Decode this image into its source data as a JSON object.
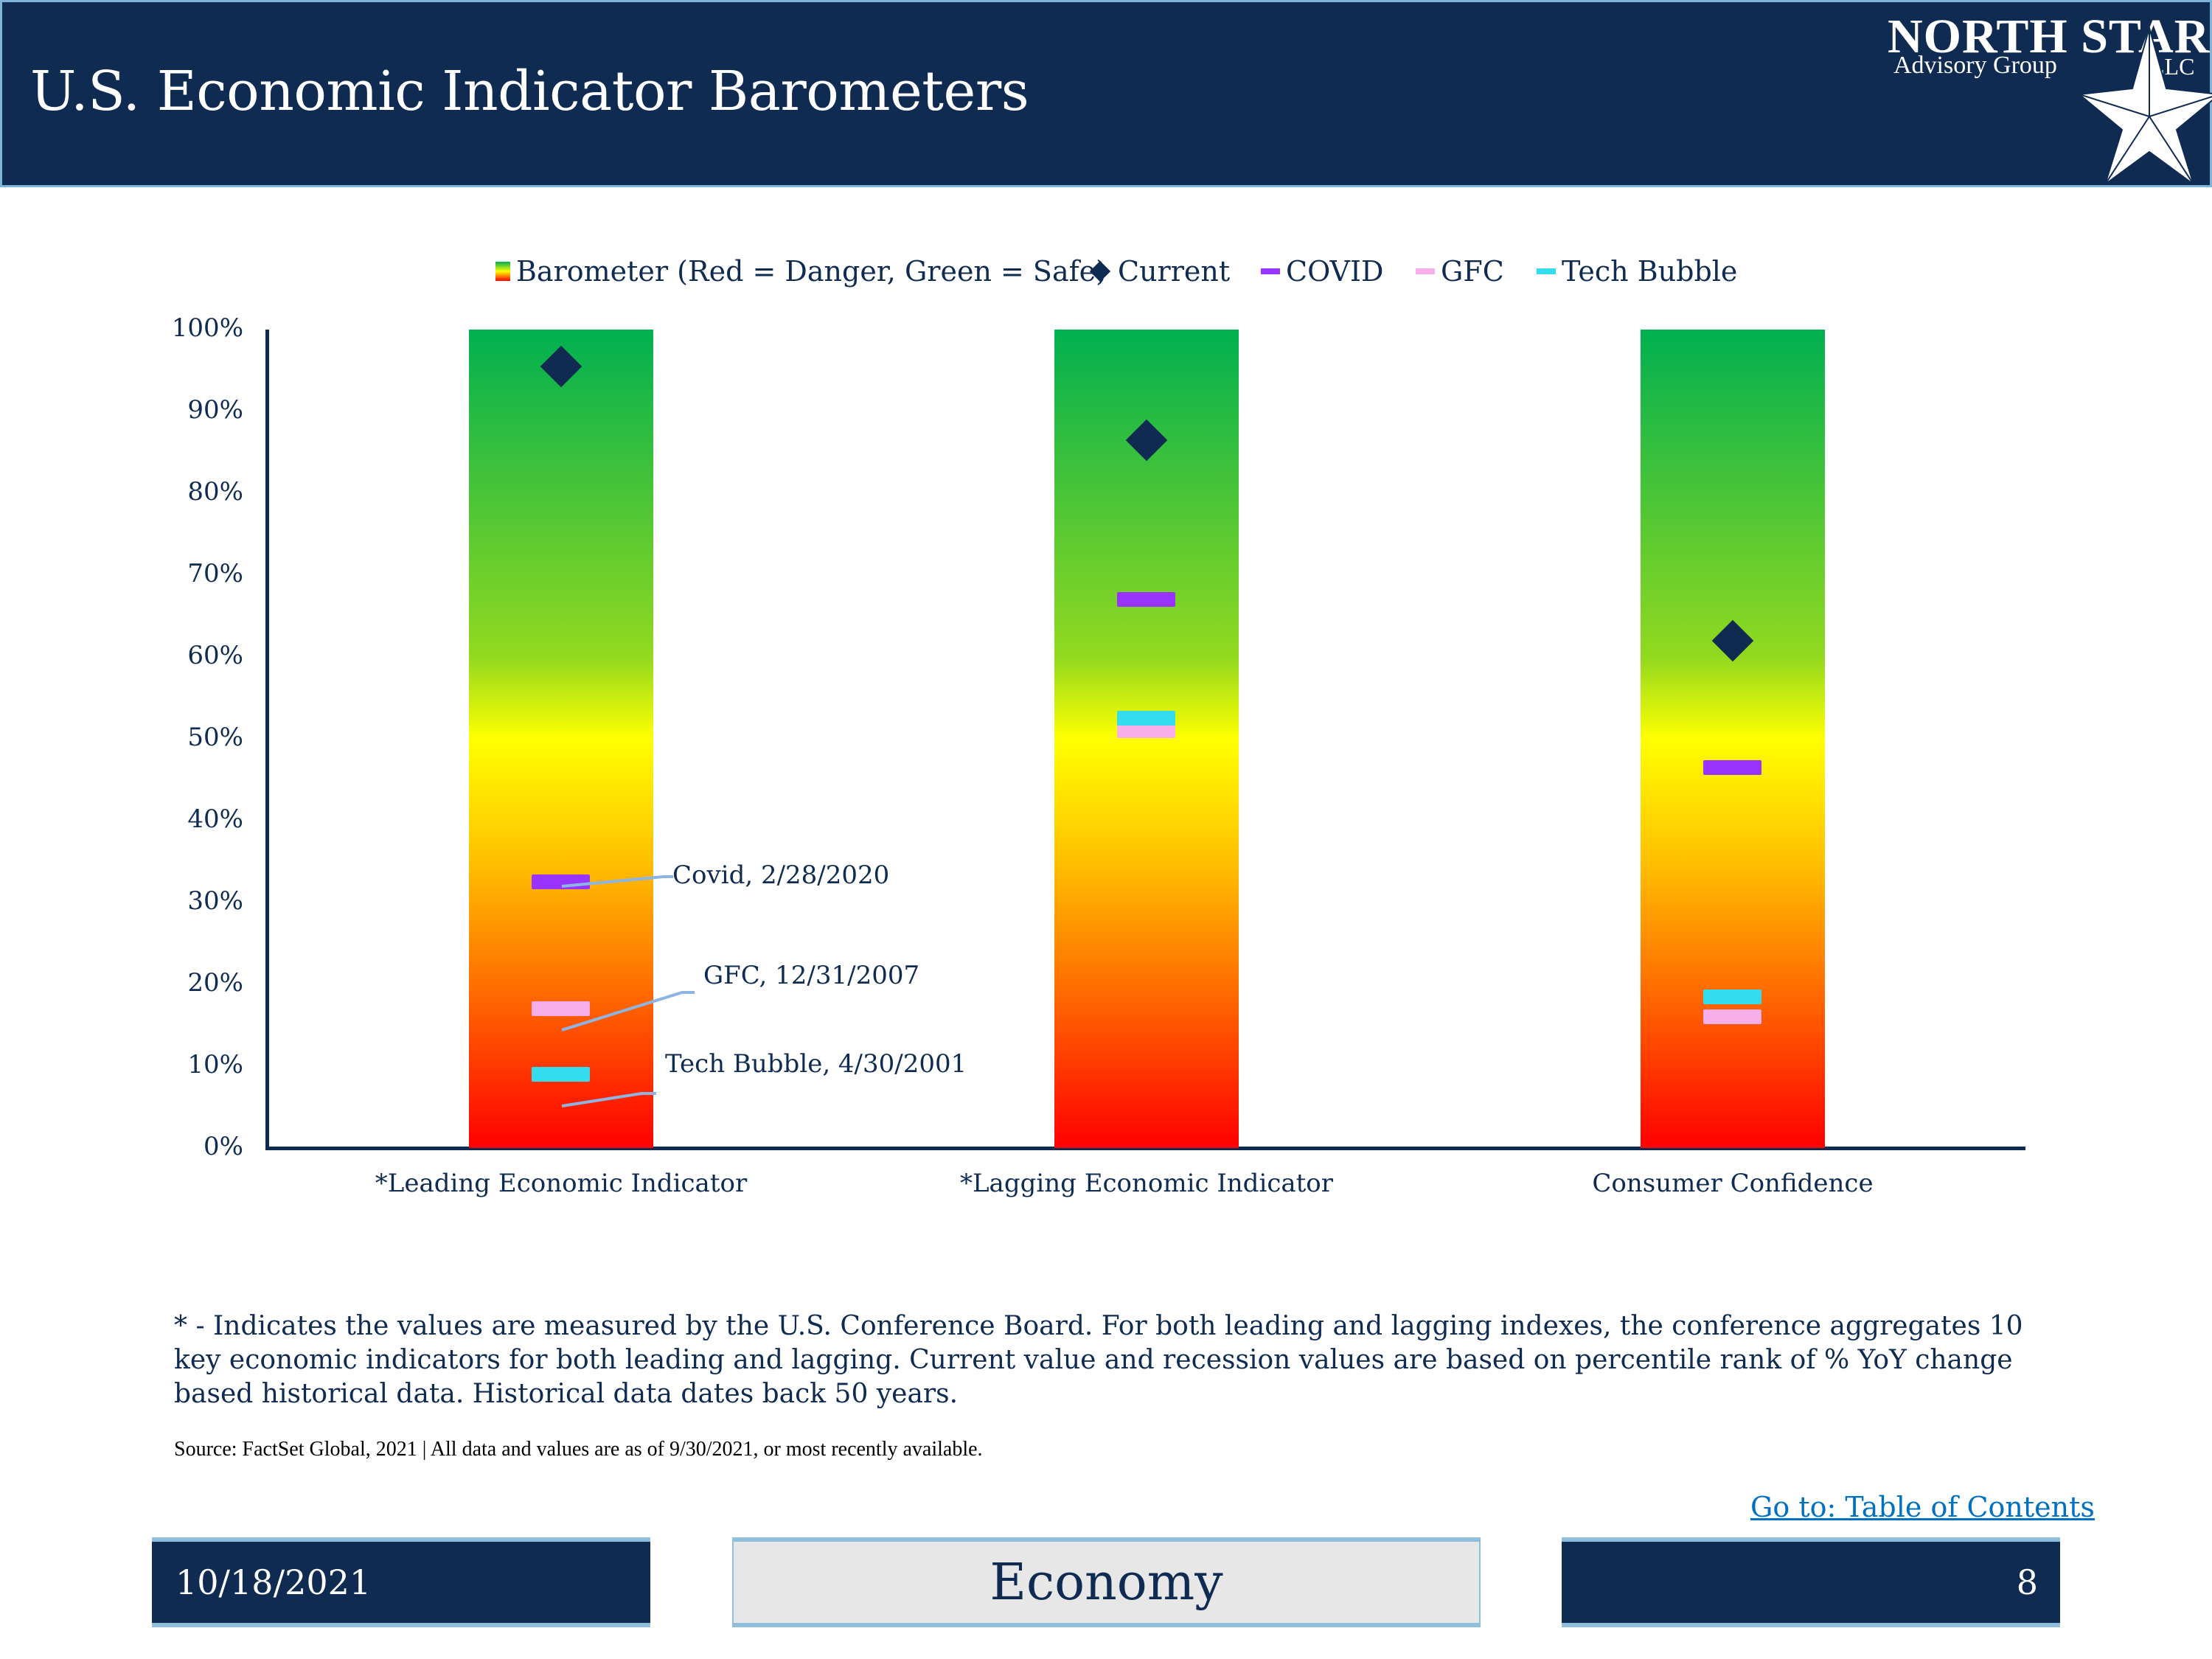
{
  "header": {
    "title": "U.S. Economic Indicator Barometers",
    "logo": {
      "name": "NORTH STAR",
      "sub": "Advisory Group",
      "llc": "LLC"
    }
  },
  "colors": {
    "navy": "#0f2b52",
    "current": "#0f2b52",
    "covid": "#9933ff",
    "gfc": "#f8aee8",
    "tech_bubble": "#33ddee",
    "leader_line": "#8db4e2",
    "link": "#0070c0"
  },
  "legend": [
    {
      "key": "barometer",
      "label": "Barometer (Red = Danger, Green = Safe)",
      "icon": "gradient-bar-icon"
    },
    {
      "key": "current",
      "label": "Current",
      "icon": "diamond-icon"
    },
    {
      "key": "covid",
      "label": "COVID",
      "icon": "line-icon"
    },
    {
      "key": "gfc",
      "label": "GFC",
      "icon": "line-icon"
    },
    {
      "key": "tech",
      "label": "Tech Bubble",
      "icon": "line-icon"
    }
  ],
  "yaxis": {
    "ticks": [
      "100%",
      "90%",
      "80%",
      "70%",
      "60%",
      "50%",
      "40%",
      "30%",
      "20%",
      "10%",
      "0%"
    ]
  },
  "annotations": {
    "covid": "Covid, 2/28/2020",
    "gfc": "GFC, 12/31/2007",
    "tech": "Tech Bubble, 4/30/2001"
  },
  "chart_data": {
    "type": "bar",
    "title": "U.S. Economic Indicator Barometers",
    "xlabel": "",
    "ylabel": "",
    "ylim": [
      0,
      100
    ],
    "y_format": "percent",
    "grid": false,
    "legend_position": "top",
    "categories": [
      "*Leading Economic Indicator",
      "*Lagging Economic Indicator",
      "Consumer Confidence"
    ],
    "series": [
      {
        "name": "Barometer (Red = Danger, Green = Safe)",
        "type": "bar",
        "values": [
          100,
          100,
          100
        ]
      },
      {
        "name": "Current",
        "type": "scatter",
        "marker": "diamond",
        "values": [
          95.5,
          86.5,
          62
        ]
      },
      {
        "name": "COVID",
        "type": "scatter",
        "marker": "dash",
        "values": [
          32.5,
          67,
          46.5
        ]
      },
      {
        "name": "GFC",
        "type": "scatter",
        "marker": "dash",
        "values": [
          17,
          51,
          16
        ]
      },
      {
        "name": "Tech Bubble",
        "type": "scatter",
        "marker": "dash",
        "values": [
          9,
          52.5,
          18.5
        ]
      }
    ],
    "annotations": [
      {
        "category": "*Leading Economic Indicator",
        "series": "COVID",
        "text": "Covid, 2/28/2020"
      },
      {
        "category": "*Leading Economic Indicator",
        "series": "GFC",
        "text": "GFC, 12/31/2007"
      },
      {
        "category": "*Leading Economic Indicator",
        "series": "Tech Bubble",
        "text": "Tech Bubble, 4/30/2001"
      }
    ]
  },
  "footnote": "* - Indicates the values are measured by the U.S. Conference Board. For both leading and lagging indexes, the conference aggregates 10 key economic indicators for both leading and lagging. Current value and recession values are based on percentile rank of % YoY change based historical data. Historical data dates back 50 years.",
  "source": "Source: FactSet Global, 2021 | All data and values are as of 9/30/2021, or most recently available.",
  "toc_link": "Go to: Table of Contents",
  "footer": {
    "date": "10/18/2021",
    "section": "Economy",
    "page": "8"
  }
}
